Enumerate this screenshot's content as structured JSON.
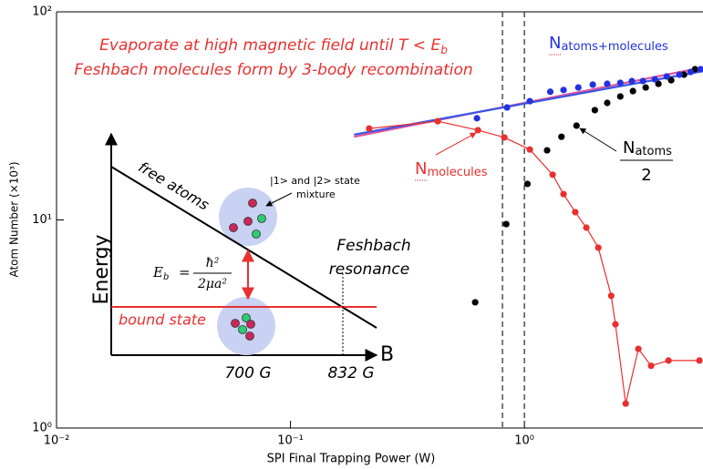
{
  "chart_data": {
    "type": "scatter",
    "xlabel": "SPI Final Trapping Power (W)",
    "ylabel": "Atom Number (×10³)",
    "xscale": "log",
    "yscale": "log",
    "xlim": [
      0.01,
      5.8
    ],
    "ylim": [
      1,
      100
    ],
    "xticks": [
      {
        "value": 0.01,
        "label": "10⁻²"
      },
      {
        "value": 0.1,
        "label": "10⁻¹"
      },
      {
        "value": 1,
        "label": "10⁰"
      }
    ],
    "yticks": [
      {
        "value": 1,
        "label": "10⁰"
      },
      {
        "value": 10,
        "label": "10¹"
      },
      {
        "value": 100,
        "label": "10²"
      }
    ],
    "vlines": [
      0.806,
      1
    ],
    "series": [
      {
        "color": "#e0529c",
        "line": true,
        "marker": false,
        "x": [
          0.187,
          5.81
        ],
        "values": [
          25.1,
          54.1
        ]
      },
      {
        "color": "#3b55e6",
        "line": true,
        "marker": false,
        "x": [
          0.187,
          5.81
        ],
        "values": [
          25.7,
          51.9
        ]
      },
      {
        "color": "#e8302f",
        "line": true,
        "marker": true,
        "x": [
          0.217,
          0.426,
          0.633,
          0.821,
          1.055,
          1.32,
          1.47,
          1.65,
          1.84,
          2.07,
          2.35,
          2.45,
          2.71,
          3.07,
          3.48,
          4.13,
          5.6
        ],
        "values": [
          27.5,
          29.8,
          27.0,
          24.9,
          21.8,
          16.5,
          13.3,
          10.9,
          9.18,
          7.36,
          4.32,
          3.15,
          1.31,
          2.4,
          1.99,
          2.11,
          2.11
        ]
      },
      {
        "color": "#000000",
        "line": false,
        "marker": true,
        "x": [
          0.616,
          0.836,
          1.03,
          1.25,
          1.44,
          1.67,
          2.0,
          2.26,
          2.57,
          2.91,
          3.3,
          3.74,
          4.24,
          4.81,
          5.36
        ],
        "values": [
          4.02,
          9.55,
          14.9,
          21.6,
          25.1,
          28.4,
          33.7,
          36.5,
          39.2,
          41.6,
          43.3,
          45.1,
          46.9,
          49.9,
          53.0
        ]
      },
      {
        "color": "#2233dd",
        "line": false,
        "marker": true,
        "x": [
          0.627,
          0.843,
          1.055,
          1.29,
          1.47,
          1.7,
          1.96,
          2.26,
          2.57,
          2.88,
          3.21,
          3.61,
          4.06,
          4.6,
          5.13,
          5.66
        ],
        "values": [
          30.8,
          34.7,
          37.2,
          41.3,
          42.1,
          43.3,
          44.7,
          45.1,
          45.6,
          46.5,
          46.5,
          47.4,
          48.9,
          49.9,
          51.4,
          53.0
        ]
      }
    ],
    "annotations": {
      "line1": "Evaporate at high magnetic field until T < E",
      "line1_sub": "b",
      "line2": "Feshbach molecules form by 3-body recombination",
      "total_n": "N",
      "total_sub": "atoms+molecules",
      "mol_n": "N",
      "mol_sub": "molecules",
      "atoms_n": "N",
      "atoms_sub": "atoms",
      "atoms_den": "2"
    },
    "inset": {
      "ylabel": "Energy",
      "xlabel": "B",
      "free": "free atoms",
      "bound": "bound state",
      "mixture1": "|1> and |2> state",
      "mixture2": "mixture",
      "eb": "E",
      "eb_sub": "b",
      "eq": "=",
      "num": "ħ²",
      "den": "2μa²",
      "feshbach1": "Feshbach",
      "feshbach2": "resonance",
      "b1": "700 G",
      "b2": "832 G"
    }
  }
}
